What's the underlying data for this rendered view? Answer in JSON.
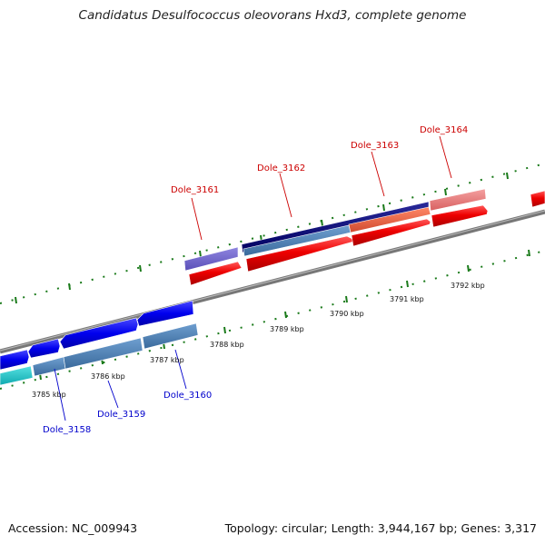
{
  "title": "Candidatus Desulfococcus oleovorans Hxd3, complete genome",
  "footer": {
    "accession": "Accession: NC_009943",
    "summary": "Topology: circular; Length: 3,944,167 bp; Genes: 3,317"
  },
  "scale_labels": [
    "3785 kbp",
    "3786 kbp",
    "3787 kbp",
    "3788 kbp",
    "3789 kbp",
    "3790 kbp",
    "3791 kbp",
    "3792 kbp"
  ],
  "gene_labels": {
    "top": [
      "Dole_3161",
      "Dole_3162",
      "Dole_3163",
      "Dole_3164"
    ],
    "bottom": [
      "Dole_3158",
      "Dole_3159",
      "Dole_3160"
    ]
  },
  "colors": {
    "label_top": "#cc0000",
    "label_bottom": "#0000cc",
    "tick": "#1a7a1a",
    "axis": "#777777"
  }
}
